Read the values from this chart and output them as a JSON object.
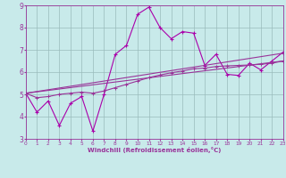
{
  "title": "",
  "xlabel": "Windchill (Refroidissement éolien,°C)",
  "xlim": [
    0,
    23
  ],
  "ylim": [
    3,
    9
  ],
  "yticks": [
    3,
    4,
    5,
    6,
    7,
    8,
    9
  ],
  "xticks": [
    0,
    1,
    2,
    3,
    4,
    5,
    6,
    7,
    8,
    9,
    10,
    11,
    12,
    13,
    14,
    15,
    16,
    17,
    18,
    19,
    20,
    21,
    22,
    23
  ],
  "bg_color": "#c8eaea",
  "line_color_main": "#aa00aa",
  "line_color_trend": "#993399",
  "grid_color": "#99bbbb",
  "series1_x": [
    0,
    1,
    2,
    3,
    4,
    5,
    6,
    7,
    8,
    9,
    10,
    11,
    12,
    13,
    14,
    15,
    16,
    17,
    18,
    19,
    20,
    21,
    22,
    23
  ],
  "series1_y": [
    5.05,
    4.2,
    4.7,
    3.6,
    4.6,
    4.9,
    3.35,
    5.0,
    6.8,
    7.2,
    8.6,
    8.92,
    8.0,
    7.5,
    7.82,
    7.75,
    6.3,
    6.8,
    5.9,
    5.85,
    6.4,
    6.1,
    6.5,
    6.9
  ],
  "series2_x": [
    0,
    1,
    2,
    3,
    4,
    5,
    6,
    7,
    8,
    9,
    10,
    11,
    12,
    13,
    14,
    15,
    16,
    17,
    18,
    19,
    20,
    21,
    22,
    23
  ],
  "series2_y": [
    5.05,
    4.85,
    4.9,
    5.0,
    5.05,
    5.1,
    5.05,
    5.15,
    5.3,
    5.45,
    5.6,
    5.75,
    5.87,
    5.97,
    6.05,
    6.15,
    6.18,
    6.25,
    6.28,
    6.3,
    6.32,
    6.35,
    6.4,
    6.5
  ],
  "series3_x": [
    0,
    23
  ],
  "series3_y": [
    5.05,
    6.85
  ],
  "series4_x": [
    0,
    23
  ],
  "series4_y": [
    5.05,
    6.5
  ]
}
